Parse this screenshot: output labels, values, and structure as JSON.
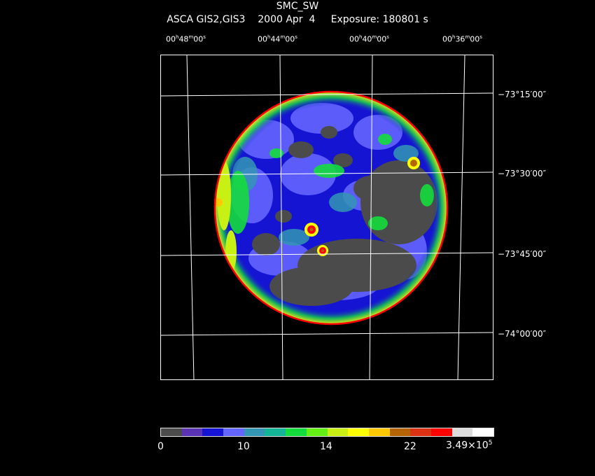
{
  "header": {
    "target": "SMC_SW",
    "info": "ASCA GIS2,GIS3    2000 Apr  4     Exposure: 180801 s"
  },
  "ra_labels": [
    {
      "h": "00",
      "m": "48",
      "s": "00"
    },
    {
      "h": "00",
      "m": "44",
      "s": "00"
    },
    {
      "h": "00",
      "m": "40",
      "s": "00"
    },
    {
      "h": "00",
      "m": "36",
      "s": "00"
    }
  ],
  "dec_labels": [
    "−73°15′00″",
    "−73°30′00″",
    "−73°45′00″",
    "−74°00′00″"
  ],
  "colorbar": {
    "colors": [
      "#4b4b4b",
      "#5a34b4",
      "#1414d2",
      "#6464ff",
      "#3296b4",
      "#14b496",
      "#14dc3c",
      "#64f014",
      "#c8f014",
      "#ffff00",
      "#ffc800",
      "#b46400",
      "#dc3214",
      "#ff0000",
      "#dcdcdc",
      "#ffffff"
    ],
    "labels": {
      "l0": "0",
      "l1": "10",
      "l2": "14",
      "l3": "22",
      "l4_base": "3.49×10",
      "l4_exp": "5"
    }
  },
  "image": {
    "palette": {
      "background": "#000000",
      "low": "#4b4b4b",
      "mid_low": "#1414d2",
      "mid": "#6464ff",
      "green": "#14dc3c",
      "yellow": "#ffff00",
      "red": "#ff0000",
      "grid": "#ffffff"
    }
  }
}
